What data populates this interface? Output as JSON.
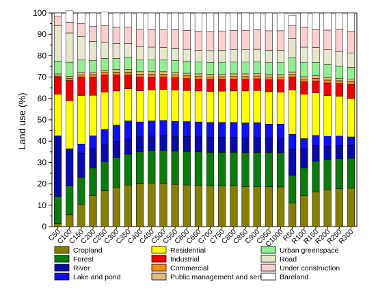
{
  "chart_data": {
    "type": "bar",
    "stacked": true,
    "title": "",
    "xlabel": "",
    "ylabel": "Land use (%)",
    "ylim": [
      0,
      100
    ],
    "yticks": [
      0,
      10,
      20,
      30,
      40,
      50,
      60,
      70,
      80,
      90,
      100
    ],
    "grid": false,
    "legend_position": "bottom",
    "categories": [
      "C50",
      "C100",
      "C150",
      "C200",
      "C250",
      "C300",
      "C350",
      "C400",
      "C450",
      "C500",
      "C550",
      "C600",
      "C650",
      "C700",
      "C750",
      "C800",
      "C850",
      "C900",
      "C950",
      "C1000",
      "R50",
      "R100",
      "R150",
      "R200",
      "R250",
      "R300"
    ],
    "series": [
      {
        "name": "Cropland",
        "color": "#857E00",
        "values": [
          1.5,
          5.5,
          10.5,
          14.5,
          16.8,
          18.3,
          19.5,
          20.0,
          20.3,
          20.2,
          19.8,
          19.5,
          19.2,
          19.0,
          19.0,
          19.0,
          18.8,
          18.8,
          18.7,
          18.6,
          11.0,
          14.5,
          16.3,
          17.3,
          17.8,
          18.0
        ]
      },
      {
        "name": "Forest",
        "color": "#0C7A0C",
        "values": [
          12.5,
          13.5,
          12.5,
          13.0,
          13.5,
          14.0,
          14.5,
          15.0,
          15.2,
          15.5,
          15.5,
          15.7,
          15.8,
          15.8,
          15.8,
          15.8,
          15.8,
          15.9,
          16.0,
          16.0,
          13.0,
          13.0,
          14.4,
          14.0,
          14.0,
          14.0
        ]
      },
      {
        "name": "River",
        "color": "#0A0AA8",
        "values": [
          28.5,
          17.4,
          11.2,
          9.0,
          8.0,
          7.7,
          7.0,
          7.0,
          7.0,
          7.0,
          7.0,
          7.0,
          7.0,
          7.0,
          7.0,
          7.0,
          7.0,
          7.0,
          6.8,
          6.9,
          12.2,
          9.0,
          7.3,
          6.5,
          6.2,
          6.0
        ]
      },
      {
        "name": "Lake and pond",
        "color": "#1010F5",
        "values": [
          0,
          0,
          4.5,
          6.0,
          7.2,
          7.5,
          8.5,
          7.0,
          7.0,
          7.0,
          7.0,
          7.0,
          7.0,
          7.0,
          7.0,
          7.0,
          7.0,
          7.0,
          6.5,
          6.5,
          7.0,
          4.7,
          4.7,
          4.5,
          4.4,
          4.0
        ]
      },
      {
        "name": "Residential",
        "color": "#FFFF00",
        "values": [
          19.5,
          22.5,
          22.7,
          19.0,
          17.5,
          16.0,
          15.0,
          14.6,
          14.5,
          14.5,
          14.6,
          14.5,
          14.5,
          14.5,
          14.6,
          14.7,
          14.9,
          15.0,
          15.2,
          15.0,
          20.8,
          20.8,
          20.0,
          19.0,
          18.6,
          18.0
        ]
      },
      {
        "name": "Industrial",
        "color": "#EE0000",
        "values": [
          8.0,
          9.5,
          8.6,
          8.5,
          8.0,
          7.5,
          6.5,
          6.4,
          6.0,
          5.8,
          5.8,
          5.6,
          5.5,
          5.5,
          5.5,
          5.5,
          5.5,
          5.5,
          5.5,
          5.7,
          6.0,
          5.8,
          5.5,
          6.0,
          6.0,
          6.5
        ]
      },
      {
        "name": "Commercial",
        "color": "#F28C14",
        "values": [
          0.5,
          1.0,
          1.0,
          1.2,
          1.2,
          1.3,
          1.3,
          1.3,
          1.3,
          1.3,
          1.3,
          1.3,
          1.3,
          1.3,
          1.3,
          1.3,
          1.3,
          1.3,
          1.3,
          1.3,
          1.2,
          1.2,
          1.2,
          1.3,
          1.3,
          1.3
        ]
      },
      {
        "name": "Public management and service",
        "color": "#E8B878",
        "values": [
          1.0,
          1.0,
          1.2,
          1.0,
          1.0,
          1.2,
          1.2,
          1.2,
          1.2,
          1.2,
          1.2,
          1.2,
          1.2,
          1.2,
          1.2,
          1.2,
          1.2,
          1.2,
          1.2,
          1.2,
          1.2,
          1.2,
          1.2,
          1.2,
          1.2,
          1.2
        ]
      },
      {
        "name": "Urban greenspace",
        "color": "#90EE90",
        "values": [
          6.0,
          6.5,
          5.8,
          5.5,
          5.5,
          5.2,
          5.5,
          5.5,
          5.5,
          5.5,
          5.5,
          5.5,
          5.5,
          5.5,
          5.5,
          5.5,
          5.5,
          5.5,
          5.5,
          5.5,
          6.6,
          6.5,
          6.2,
          6.0,
          5.7,
          5.5
        ]
      },
      {
        "name": "Road",
        "color": "#E6E6CC",
        "values": [
          16.5,
          13.8,
          11.0,
          9.0,
          7.5,
          7.0,
          6.8,
          6.5,
          6.0,
          5.8,
          5.8,
          5.7,
          5.6,
          5.6,
          5.7,
          5.8,
          5.8,
          5.8,
          5.8,
          5.8,
          9.0,
          7.3,
          7.0,
          7.0,
          6.8,
          6.7
        ]
      },
      {
        "name": "Under construction",
        "color": "#FAD0D0",
        "values": [
          4.5,
          5.0,
          6.0,
          7.0,
          8.0,
          7.6,
          7.7,
          8.0,
          8.3,
          8.5,
          8.7,
          8.8,
          8.9,
          9.0,
          9.0,
          9.0,
          9.1,
          9.1,
          9.2,
          9.2,
          6.0,
          9.3,
          8.4,
          9.2,
          10.3,
          10.0
        ]
      },
      {
        "name": "Bareland",
        "color": "#FFFFFF",
        "values": [
          1.5,
          5.3,
          5.0,
          6.3,
          6.3,
          6.7,
          6.5,
          7.5,
          7.7,
          7.7,
          7.8,
          8.2,
          8.5,
          8.6,
          8.4,
          8.2,
          8.1,
          7.9,
          8.3,
          8.3,
          5.0,
          6.7,
          7.8,
          8.0,
          7.7,
          8.8
        ]
      }
    ]
  }
}
